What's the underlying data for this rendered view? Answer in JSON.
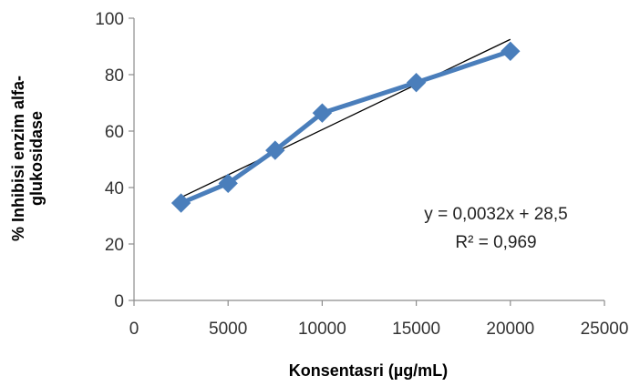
{
  "chart_data": {
    "type": "scatter",
    "xlabel": "Konsentasri  (µg/mL)",
    "ylabel_lines": [
      "% Inhibisi enzim alfa-",
      "glukosidase"
    ],
    "xlim": [
      0,
      25000
    ],
    "ylim": [
      0,
      100
    ],
    "x_ticks": [
      0,
      5000,
      10000,
      15000,
      20000,
      25000
    ],
    "y_ticks": [
      0,
      20,
      40,
      60,
      80,
      100
    ],
    "grid": false,
    "series": [
      {
        "x": [
          2500,
          5000,
          7500,
          10000,
          15000,
          20000
        ],
        "y": [
          34.5,
          41.5,
          53.2,
          66.4,
          77.2,
          88.3
        ],
        "color": "#4a7ebb",
        "marker": "diamond",
        "line": true
      }
    ],
    "trendline": {
      "type": "linear",
      "slope": 0.0032,
      "intercept": 28.5,
      "x_range": [
        2500,
        20000
      ],
      "color": "#000000"
    },
    "annotations": [
      "y = 0,0032x + 28,5",
      "R² = 0,969"
    ]
  }
}
